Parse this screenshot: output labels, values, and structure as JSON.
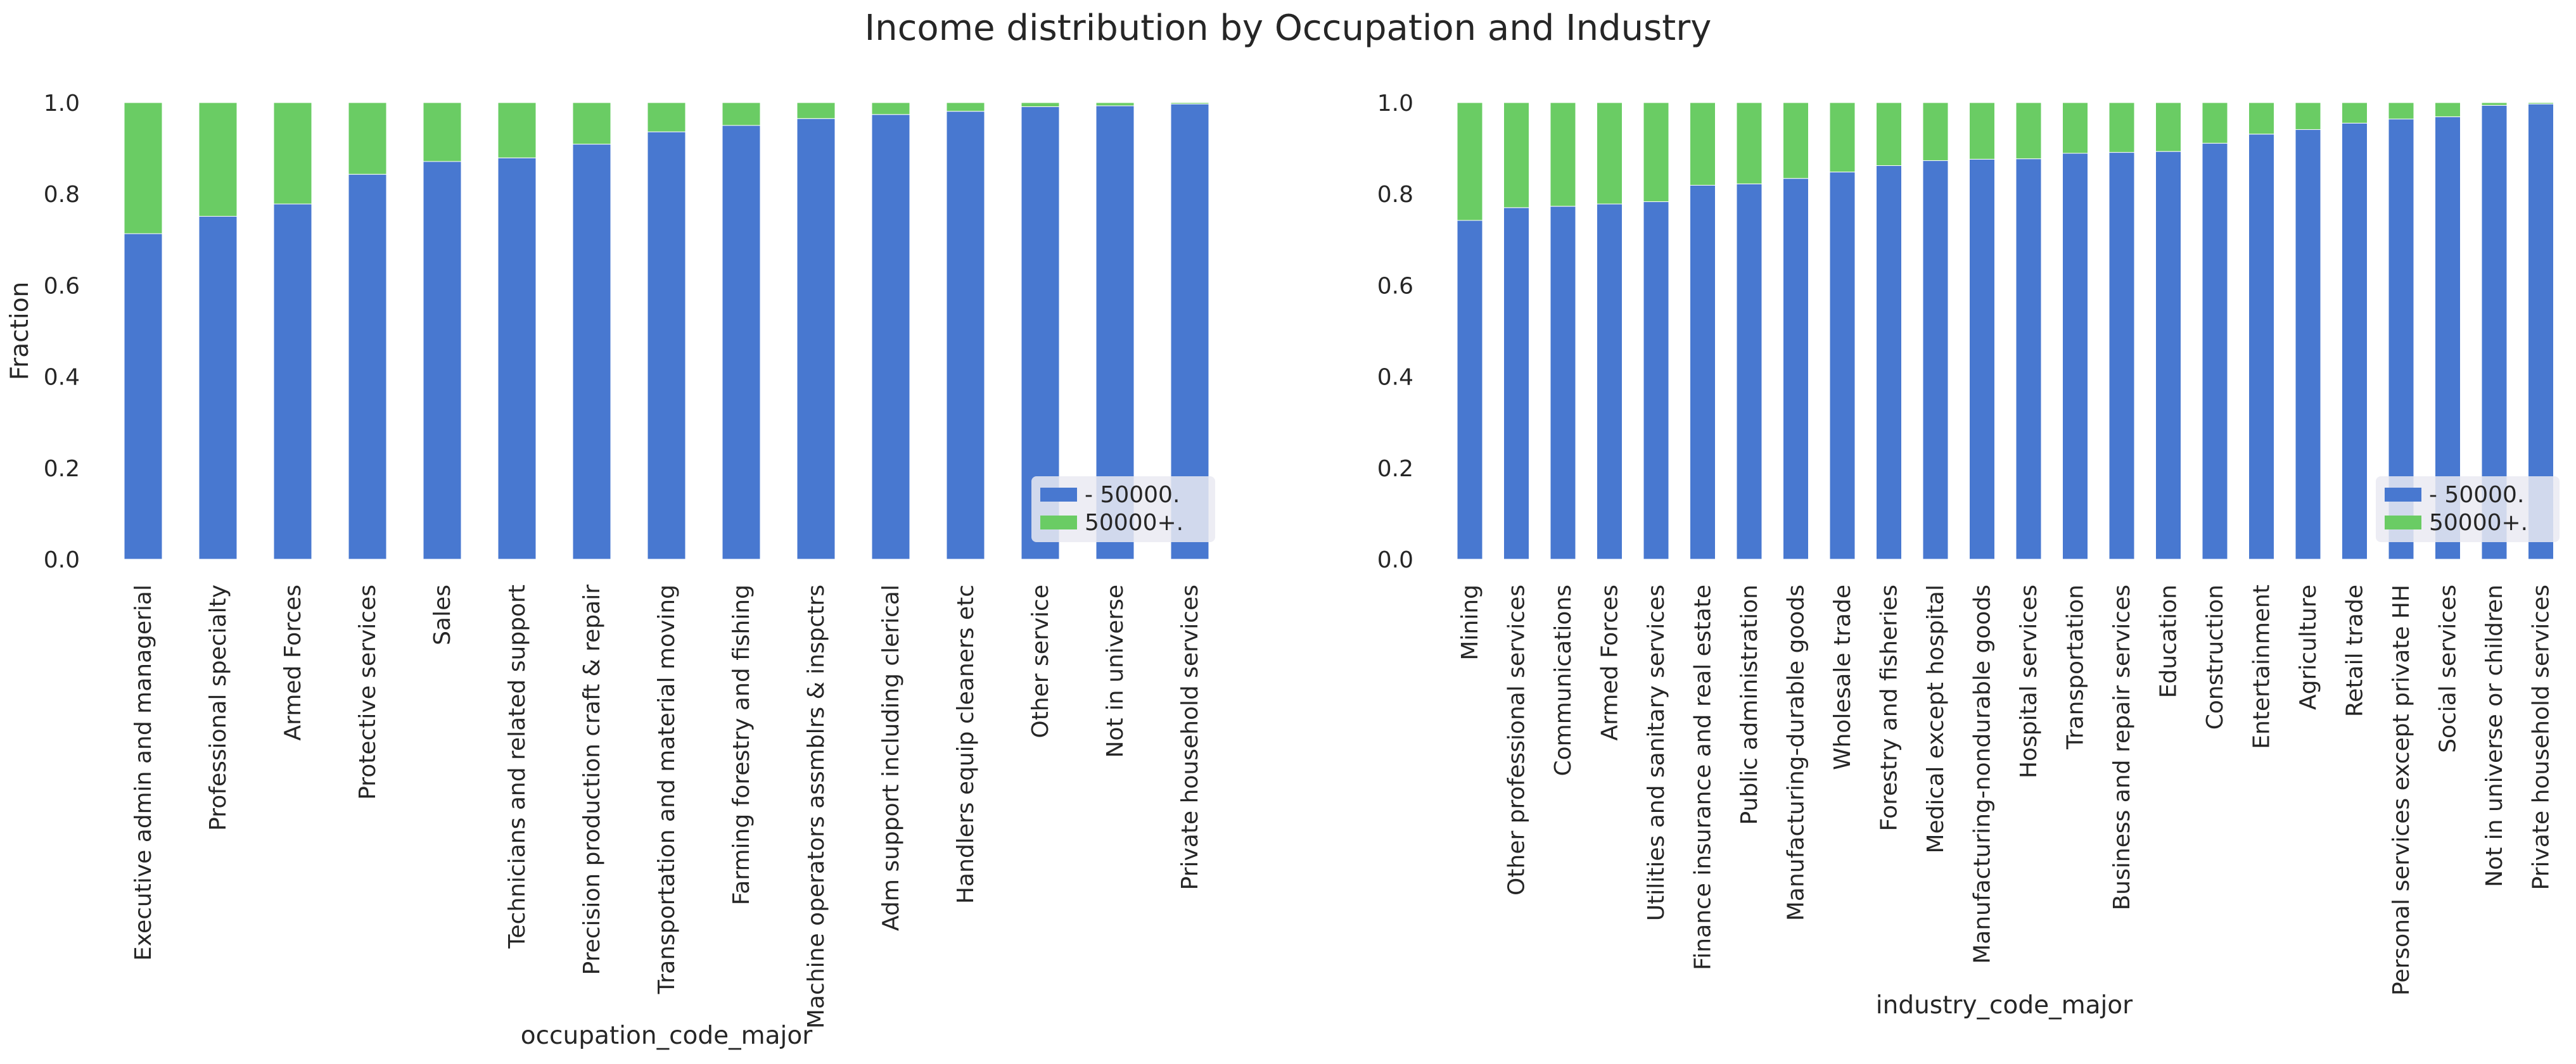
{
  "figure": {
    "title": "Income distribution by Occupation and Industry"
  },
  "colors": {
    "below": "#4878d0",
    "above": "#6acc64",
    "legend_bg": "#eaeaf2"
  },
  "chart_data": [
    {
      "type": "bar",
      "stacked": true,
      "title": "",
      "xlabel": "occupation_code_major",
      "ylabel": "Fraction",
      "ylim": [
        0,
        1.0
      ],
      "yticks": [
        "0.0",
        "0.2",
        "0.4",
        "0.6",
        "0.8",
        "1.0"
      ],
      "grid": false,
      "legend_position": "lower-right",
      "categories": [
        "Executive admin and managerial",
        "Professional specialty",
        "Armed Forces",
        "Protective services",
        "Sales",
        "Technicians and related support",
        "Precision production craft & repair",
        "Transportation and material moving",
        "Farming forestry and fishing",
        "Machine operators assmblrs & inspctrs",
        "Adm support including clerical",
        "Handlers equip cleaners etc",
        "Other service",
        "Not in universe",
        "Private household services"
      ],
      "series": [
        {
          "name": " - 50000.",
          "color": "#4878d0",
          "values": [
            0.713,
            0.751,
            0.778,
            0.843,
            0.871,
            0.879,
            0.909,
            0.936,
            0.95,
            0.965,
            0.974,
            0.981,
            0.991,
            0.993,
            0.997
          ]
        },
        {
          "name": " 50000+.",
          "color": "#6acc64",
          "values": [
            0.287,
            0.249,
            0.222,
            0.157,
            0.129,
            0.121,
            0.091,
            0.064,
            0.05,
            0.035,
            0.026,
            0.019,
            0.009,
            0.007,
            0.003
          ]
        }
      ]
    },
    {
      "type": "bar",
      "stacked": true,
      "title": "",
      "xlabel": "industry_code_major",
      "ylabel": "",
      "ylim": [
        0,
        1.0
      ],
      "yticks": [
        "0.0",
        "0.2",
        "0.4",
        "0.6",
        "0.8",
        "1.0"
      ],
      "grid": false,
      "legend_position": "lower-right",
      "categories": [
        "Mining",
        "Other professional services",
        "Communications",
        "Armed Forces",
        "Utilities and sanitary services",
        "Finance insurance and real estate",
        "Public administration",
        "Manufacturing-durable goods",
        "Wholesale trade",
        "Forestry and fisheries",
        "Medical except hospital",
        "Manufacturing-nondurable goods",
        "Hospital services",
        "Transportation",
        "Business and repair services",
        "Education",
        "Construction",
        "Entertainment",
        "Agriculture",
        "Retail trade",
        "Personal services except private HH",
        "Social services",
        "Not in universe or children",
        "Private household services"
      ],
      "series": [
        {
          "name": " - 50000.",
          "color": "#4878d0",
          "values": [
            0.742,
            0.77,
            0.773,
            0.778,
            0.783,
            0.819,
            0.822,
            0.834,
            0.848,
            0.862,
            0.873,
            0.876,
            0.877,
            0.889,
            0.891,
            0.893,
            0.911,
            0.931,
            0.941,
            0.955,
            0.964,
            0.969,
            0.994,
            0.997
          ]
        },
        {
          "name": " 50000+.",
          "color": "#6acc64",
          "values": [
            0.258,
            0.23,
            0.227,
            0.222,
            0.217,
            0.181,
            0.178,
            0.166,
            0.152,
            0.138,
            0.127,
            0.124,
            0.123,
            0.111,
            0.109,
            0.107,
            0.089,
            0.069,
            0.059,
            0.045,
            0.036,
            0.031,
            0.006,
            0.003
          ]
        }
      ]
    }
  ]
}
